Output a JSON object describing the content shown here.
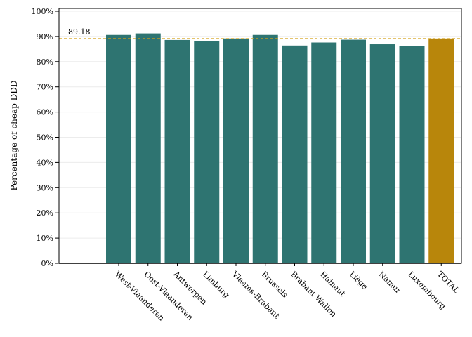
{
  "chart_data": {
    "type": "bar",
    "title": "",
    "xlabel": "",
    "ylabel": "Percentage of cheap DDD",
    "ylim": [
      0,
      100
    ],
    "yticks": [
      0,
      10,
      20,
      30,
      40,
      50,
      60,
      70,
      80,
      90,
      100
    ],
    "ytick_suffix": "%",
    "grid": true,
    "categories": [
      "West-Vlaanderen",
      "Oost-Vlaanderen",
      "Antwerpen",
      "Limburg",
      "Vlaams-Brabant",
      "Brussels",
      "Brabant Wallon",
      "Hainaut",
      "Liège",
      "Namur",
      "Luxembourg",
      "TOTAL"
    ],
    "values": [
      90.6,
      91.2,
      88.6,
      88.2,
      89.2,
      90.6,
      86.4,
      87.6,
      88.7,
      86.9,
      86.2,
      89.18
    ],
    "reference_line": {
      "value": 89.18,
      "label": "89.18"
    },
    "colors": {
      "bar": "#2e7471",
      "total_bar": "#b8860b",
      "reference_line": "#d4a017"
    }
  }
}
